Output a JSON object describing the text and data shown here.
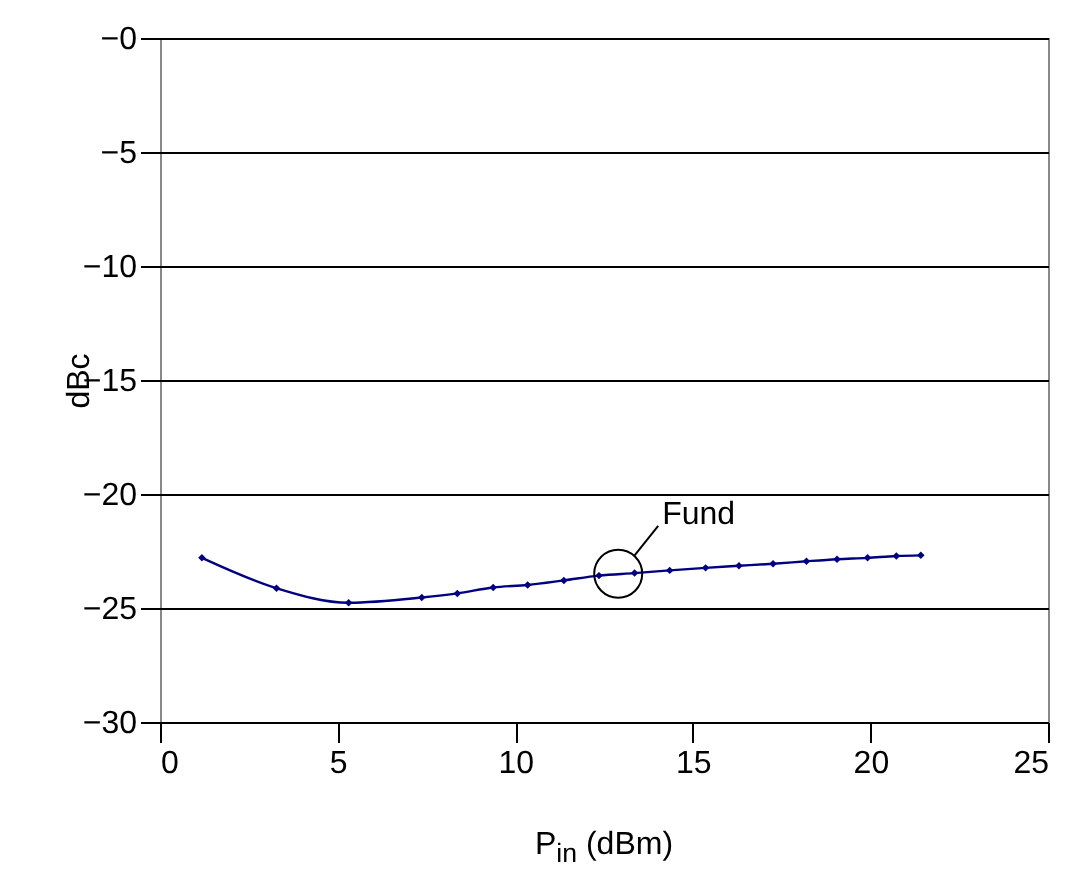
{
  "chart_data": {
    "type": "line",
    "xlabel": "P$_{in}$ (dBm)",
    "ylabel": "dBc",
    "x": [
      1.18,
      3.28,
      5.31,
      7.37,
      8.37,
      9.38,
      10.35,
      11.37,
      12.36,
      13.36,
      14.35,
      15.36,
      16.3,
      17.26,
      18.2,
      19.06,
      19.92,
      20.73,
      21.42
    ],
    "series": [
      {
        "color": "#000080",
        "values": [
          -22.8,
          -24.13,
          -24.77,
          -24.54,
          -24.36,
          -24.1,
          -23.99,
          -23.79,
          -23.58,
          -23.47,
          -23.35,
          -23.24,
          -23.15,
          -23.06,
          -22.95,
          -22.86,
          -22.8,
          -22.72,
          -22.69
        ]
      }
    ],
    "xlim": [
      0,
      25
    ],
    "xticks": [
      0,
      5,
      10,
      15,
      20,
      25
    ],
    "ylim": [
      -30,
      0
    ],
    "yticks": [
      {
        "value": -30,
        "label": "−30"
      },
      {
        "value": -25,
        "label": "−25"
      },
      {
        "value": -20,
        "label": "−20"
      },
      {
        "value": -15,
        "label": "−15"
      },
      {
        "value": -10,
        "label": "−10"
      },
      {
        "value": -5,
        "label": "−5"
      },
      {
        "value": 0,
        "label": "−0"
      }
    ],
    "grid": "y",
    "marker": "diamond",
    "line_style": "solid",
    "annotations": [
      {
        "text": "Fund",
        "x": 12.9,
        "y": -23.5
      }
    ]
  }
}
